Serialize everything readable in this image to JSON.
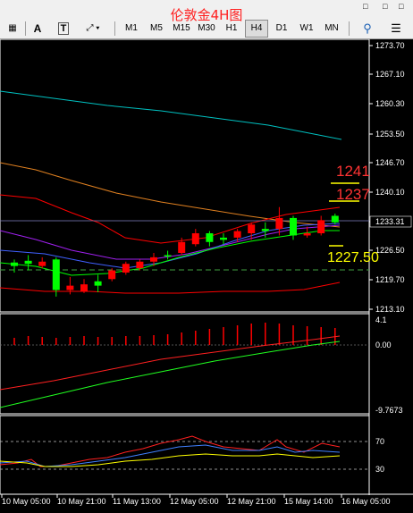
{
  "chart_title": "伦敦金4H图",
  "toolbar": {
    "grid_icon": "grid-icon",
    "text_tool": "A",
    "label_tool": "T",
    "shapes_icon": "shapes-icon",
    "timeframes": [
      "M1",
      "M5",
      "M15",
      "M30",
      "H1",
      "H4",
      "D1",
      "W1",
      "MN"
    ],
    "active_timeframe": "H4",
    "search_icon": "search-icon",
    "menu_icon": "menu-icon"
  },
  "window_controls": [
    "minimize-icon",
    "restore-icon"
  ],
  "annotations": {
    "level_1": "1241",
    "level_2": "1237",
    "level_3": "1227.50"
  },
  "colors": {
    "up_candle": "#00ff00",
    "down_candle": "#ff0000",
    "annotation": "#ff3333",
    "yellow_line": "#ffff00",
    "green_ma": "#00ff00",
    "cyan_ma": "#00c0c0",
    "orange_ma": "#e08020",
    "violet_ma": "#a020f0",
    "red_band": "#ff0000"
  },
  "chart_data": [
    {
      "type": "candlestick",
      "title": "",
      "y_ticks": [
        "1273.70",
        "1267.10",
        "1260.30",
        "1253.50",
        "1246.70",
        "1240.10",
        "1233.31",
        "1226.50",
        "1219.70",
        "1213.10"
      ],
      "ylim": [
        1213.1,
        1273.7
      ],
      "current_price": 1233.31,
      "candles": [
        {
          "o": 1223.0,
          "h": 1224.5,
          "l": 1221.5,
          "c": 1223.8,
          "up": true
        },
        {
          "o": 1223.5,
          "h": 1225.5,
          "l": 1222.0,
          "c": 1224.2,
          "up": true
        },
        {
          "o": 1224.0,
          "h": 1225.0,
          "l": 1222.5,
          "c": 1223.0,
          "up": false
        },
        {
          "o": 1224.5,
          "h": 1225.0,
          "l": 1216.0,
          "c": 1217.5,
          "up": true
        },
        {
          "o": 1218.5,
          "h": 1220.5,
          "l": 1216.5,
          "c": 1217.5,
          "up": false
        },
        {
          "o": 1218.8,
          "h": 1220.0,
          "l": 1216.8,
          "c": 1217.2,
          "up": false
        },
        {
          "o": 1218.5,
          "h": 1221.0,
          "l": 1217.0,
          "c": 1219.5,
          "up": true
        },
        {
          "o": 1220.0,
          "h": 1222.5,
          "l": 1219.5,
          "c": 1222.0,
          "up": false
        },
        {
          "o": 1221.5,
          "h": 1224.0,
          "l": 1221.0,
          "c": 1223.5,
          "up": false
        },
        {
          "o": 1222.5,
          "h": 1224.5,
          "l": 1222.0,
          "c": 1224.0,
          "up": false
        },
        {
          "o": 1224.0,
          "h": 1226.0,
          "l": 1223.0,
          "c": 1225.0,
          "up": false
        },
        {
          "o": 1225.5,
          "h": 1226.5,
          "l": 1224.5,
          "c": 1225.5,
          "up": true
        },
        {
          "o": 1226.0,
          "h": 1229.5,
          "l": 1225.5,
          "c": 1228.5,
          "up": false
        },
        {
          "o": 1228.0,
          "h": 1231.5,
          "l": 1227.5,
          "c": 1230.5,
          "up": false
        },
        {
          "o": 1228.5,
          "h": 1231.0,
          "l": 1227.5,
          "c": 1230.5,
          "up": true
        },
        {
          "o": 1229.0,
          "h": 1230.5,
          "l": 1228.0,
          "c": 1229.5,
          "up": true
        },
        {
          "o": 1229.5,
          "h": 1231.5,
          "l": 1228.5,
          "c": 1231.0,
          "up": false
        },
        {
          "o": 1230.5,
          "h": 1233.0,
          "l": 1229.0,
          "c": 1232.5,
          "up": false
        },
        {
          "o": 1231.0,
          "h": 1233.0,
          "l": 1229.5,
          "c": 1231.5,
          "up": true
        },
        {
          "o": 1231.5,
          "h": 1236.5,
          "l": 1230.0,
          "c": 1234.0,
          "up": false
        },
        {
          "o": 1234.0,
          "h": 1234.5,
          "l": 1229.0,
          "c": 1230.0,
          "up": true
        },
        {
          "o": 1230.5,
          "h": 1232.0,
          "l": 1229.5,
          "c": 1230.0,
          "up": false
        },
        {
          "o": 1230.5,
          "h": 1234.5,
          "l": 1230.0,
          "c": 1233.5,
          "up": false
        },
        {
          "o": 1233.0,
          "h": 1235.0,
          "l": 1232.5,
          "c": 1234.5,
          "up": true
        }
      ]
    },
    {
      "type": "histogram",
      "title": "",
      "y_ticks": [
        "4.1",
        "0.00",
        "-9.7673"
      ],
      "ylim": [
        -9.7673,
        4.1
      ]
    },
    {
      "type": "line",
      "title": "",
      "y_ticks": [
        "70",
        "30"
      ],
      "ylim": [
        0,
        100
      ]
    }
  ],
  "x_ticks": [
    "10 May 05:00",
    "10 May 21:00",
    "11 May 13:00",
    "12 May 05:00",
    "12 May 21:00",
    "15 May 14:00",
    "16 May 05:00"
  ]
}
